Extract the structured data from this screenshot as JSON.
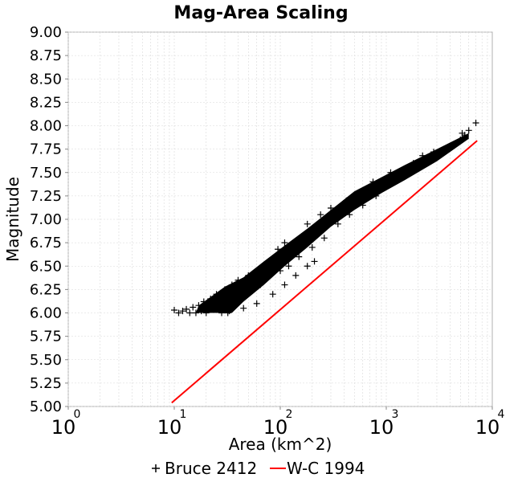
{
  "chart_data": {
    "type": "scatter",
    "title": "Mag-Area Scaling",
    "xlabel": "Area (km^2)",
    "ylabel": "Magnitude",
    "xscale": "log",
    "xlim": [
      1,
      10000
    ],
    "ylim": [
      5.0,
      9.0
    ],
    "grid": true,
    "legend_position": "bottom",
    "y_ticks": [
      "5.00",
      "5.25",
      "5.50",
      "5.75",
      "6.00",
      "6.25",
      "6.50",
      "6.75",
      "7.00",
      "7.25",
      "7.50",
      "7.75",
      "8.00",
      "8.25",
      "8.50",
      "8.75",
      "9.00"
    ],
    "x_ticks": [
      {
        "base": "10",
        "exp": "0"
      },
      {
        "base": "10",
        "exp": "1"
      },
      {
        "base": "10",
        "exp": "2"
      },
      {
        "base": "10",
        "exp": "3"
      },
      {
        "base": "10",
        "exp": "4"
      }
    ],
    "series": [
      {
        "name": "Bruce 2412",
        "kind": "scatter",
        "marker": "+",
        "color": "#000000",
        "points": [
          [
            10,
            6.03
          ],
          [
            11,
            6.0
          ],
          [
            12,
            6.02
          ],
          [
            13,
            6.04
          ],
          [
            14,
            6.0
          ],
          [
            15,
            6.06
          ],
          [
            16,
            6.0
          ],
          [
            17,
            6.08
          ],
          [
            18,
            6.02
          ],
          [
            19,
            6.12
          ],
          [
            20,
            6.0
          ],
          [
            22,
            6.15
          ],
          [
            24,
            6.05
          ],
          [
            25,
            6.2
          ],
          [
            27,
            6.1
          ],
          [
            30,
            6.25
          ],
          [
            32,
            6.0
          ],
          [
            35,
            6.3
          ],
          [
            38,
            6.15
          ],
          [
            40,
            6.35
          ],
          [
            45,
            6.2
          ],
          [
            50,
            6.4
          ],
          [
            55,
            6.25
          ],
          [
            60,
            6.45
          ],
          [
            65,
            6.3
          ],
          [
            70,
            6.5
          ],
          [
            80,
            6.4
          ],
          [
            90,
            6.55
          ],
          [
            100,
            6.45
          ],
          [
            110,
            6.65
          ],
          [
            120,
            6.5
          ],
          [
            130,
            6.7
          ],
          [
            150,
            6.6
          ],
          [
            170,
            6.8
          ],
          [
            200,
            6.7
          ],
          [
            230,
            6.9
          ],
          [
            260,
            6.8
          ],
          [
            300,
            7.0
          ],
          [
            350,
            6.95
          ],
          [
            400,
            7.1
          ],
          [
            450,
            7.05
          ],
          [
            500,
            7.2
          ],
          [
            600,
            7.15
          ],
          [
            700,
            7.3
          ],
          [
            800,
            7.25
          ],
          [
            900,
            7.4
          ],
          [
            1000,
            7.35
          ],
          [
            1200,
            7.45
          ],
          [
            1400,
            7.5
          ],
          [
            1600,
            7.55
          ],
          [
            1800,
            7.6
          ],
          [
            2000,
            7.58
          ],
          [
            2500,
            7.65
          ],
          [
            3000,
            7.7
          ],
          [
            3500,
            7.75
          ],
          [
            4000,
            7.78
          ],
          [
            4500,
            7.8
          ],
          [
            5000,
            7.85
          ],
          [
            5500,
            7.9
          ],
          [
            6000,
            7.95
          ],
          [
            7000,
            8.03
          ],
          [
            28,
            6.0
          ],
          [
            33,
            6.02
          ],
          [
            45,
            6.05
          ],
          [
            60,
            6.1
          ],
          [
            85,
            6.2
          ],
          [
            110,
            6.3
          ],
          [
            140,
            6.4
          ],
          [
            180,
            6.5
          ],
          [
            210,
            6.55
          ],
          [
            110,
            6.75
          ],
          [
            95,
            6.68
          ],
          [
            300,
            7.12
          ],
          [
            420,
            7.2
          ],
          [
            180,
            6.95
          ],
          [
            240,
            7.05
          ],
          [
            600,
            7.3
          ],
          [
            750,
            7.4
          ],
          [
            1100,
            7.5
          ],
          [
            1300,
            7.48
          ],
          [
            2200,
            7.68
          ],
          [
            2800,
            7.72
          ],
          [
            5200,
            7.92
          ]
        ]
      },
      {
        "name": "W-C 1994",
        "kind": "line",
        "color": "#ff0000",
        "points": [
          [
            9.46,
            5.04
          ],
          [
            7200,
            7.84
          ]
        ]
      }
    ]
  }
}
